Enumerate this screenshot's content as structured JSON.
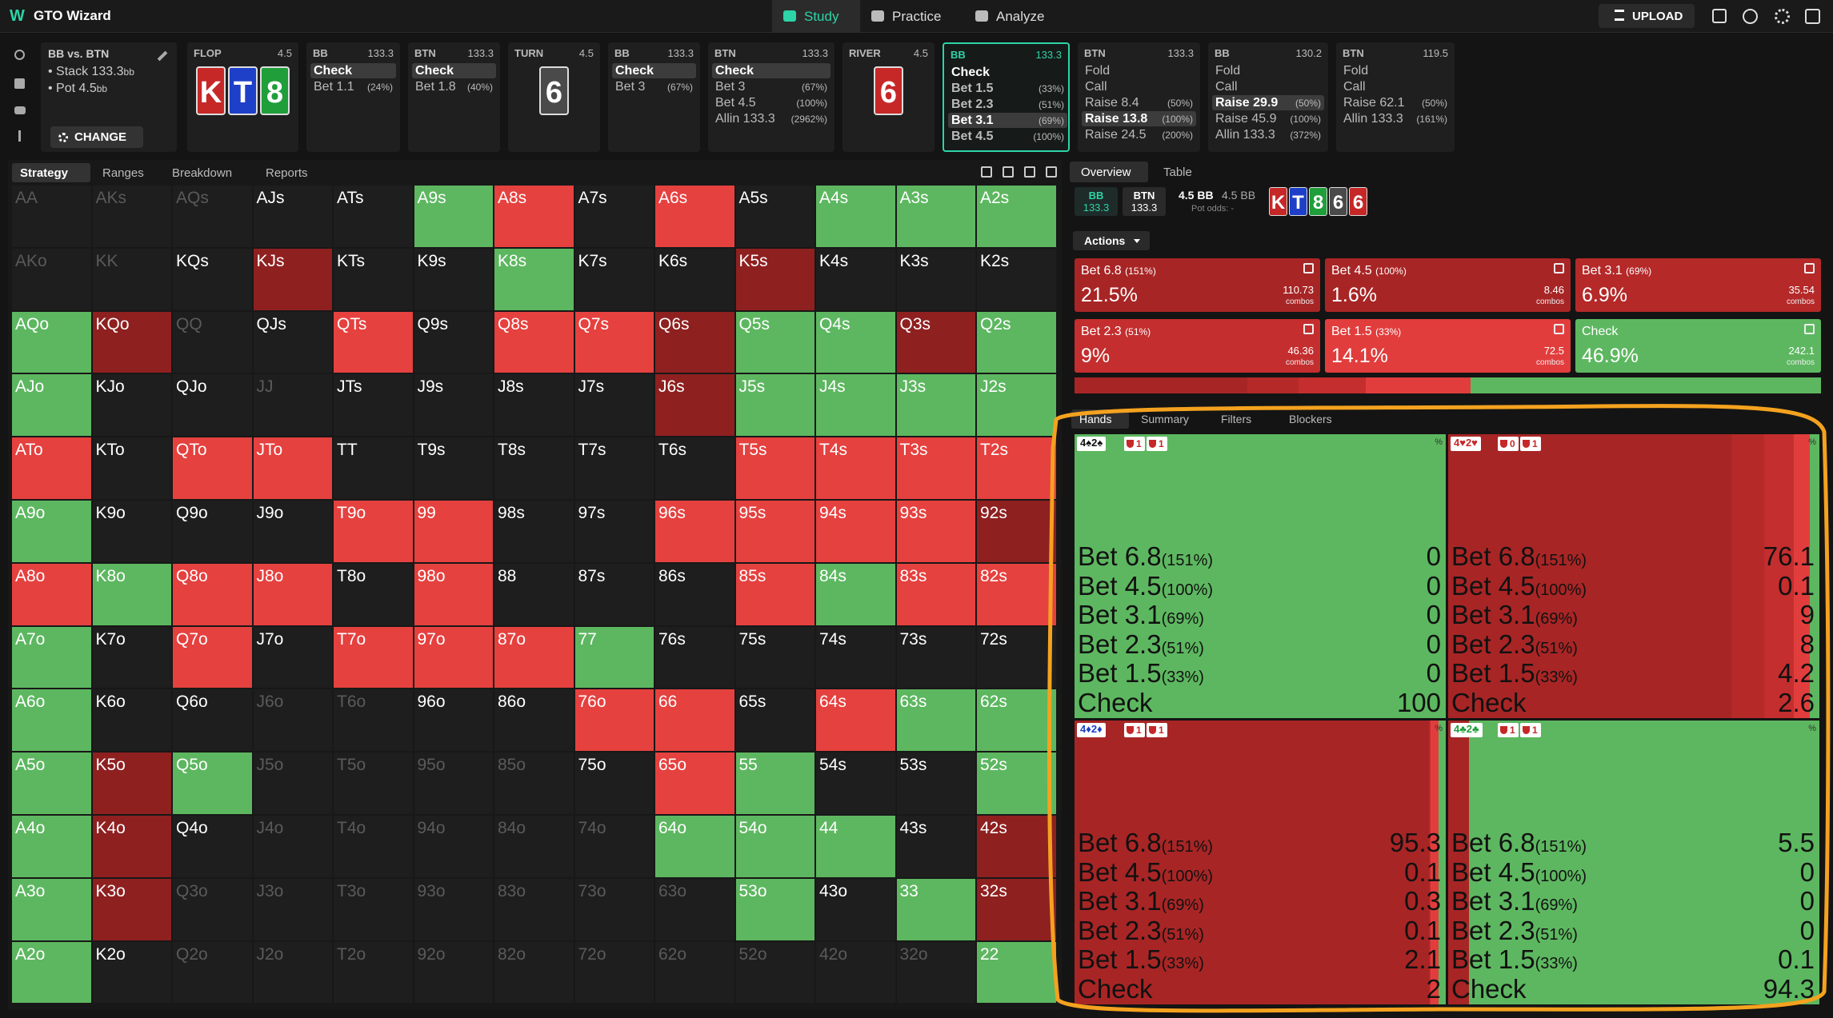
{
  "topbar": {
    "brand": "GTO Wizard",
    "nav": [
      "Study",
      "Practice",
      "Analyze"
    ],
    "active_nav": "Study",
    "upload": "UPLOAD"
  },
  "spot": {
    "matchup": "BB vs. BTN",
    "stack": "Stack 133.3",
    "stack_unit": "bb",
    "pot": "Pot 4.5",
    "pot_unit": "bb",
    "change": "CHANGE"
  },
  "action_columns": [
    {
      "label": "FLOP",
      "value": "4.5",
      "cards": [
        {
          "rank": "K",
          "color": "#c62828"
        },
        {
          "rank": "T",
          "color": "#1e40c8"
        },
        {
          "rank": "8",
          "color": "#1f9e3a"
        }
      ]
    },
    {
      "label": "BB",
      "value": "133.3",
      "actions": [
        {
          "name": "Check",
          "selected": true
        },
        {
          "name": "Bet 1.1",
          "size": "(24%)"
        }
      ]
    },
    {
      "label": "BTN",
      "value": "133.3",
      "actions": [
        {
          "name": "Check",
          "selected": true
        },
        {
          "name": "Bet 1.8",
          "size": "(40%)"
        }
      ]
    },
    {
      "label": "TURN",
      "value": "4.5",
      "cards": [
        {
          "rank": "6",
          "color": "#4a4a4a"
        }
      ]
    },
    {
      "label": "BB",
      "value": "133.3",
      "actions": [
        {
          "name": "Check",
          "selected": true
        },
        {
          "name": "Bet 3",
          "size": "(67%)"
        }
      ]
    },
    {
      "label": "BTN",
      "value": "133.3",
      "actions": [
        {
          "name": "Check",
          "selected": true
        },
        {
          "name": "Bet 3",
          "size": "(67%)"
        },
        {
          "name": "Bet 4.5",
          "size": "(100%)"
        },
        {
          "name": "Allin 133.3",
          "size": "(2962%)"
        }
      ]
    },
    {
      "label": "RIVER",
      "value": "4.5",
      "cards": [
        {
          "rank": "6",
          "color": "#c62828"
        }
      ]
    },
    {
      "label": "BB",
      "value": "133.3",
      "active": true,
      "actions": [
        {
          "name": "Check"
        },
        {
          "name": "Bet 1.5",
          "size": "(33%)"
        },
        {
          "name": "Bet 2.3",
          "size": "(51%)"
        },
        {
          "name": "Bet 3.1",
          "size": "(69%)",
          "selected": true
        },
        {
          "name": "Bet 4.5",
          "size": "(100%)"
        }
      ]
    },
    {
      "label": "BTN",
      "value": "133.3",
      "actions": [
        {
          "name": "Fold"
        },
        {
          "name": "Call"
        },
        {
          "name": "Raise 8.4",
          "size": "(50%)"
        },
        {
          "name": "Raise 13.8",
          "size": "(100%)",
          "selected": true
        },
        {
          "name": "Raise 24.5",
          "size": "(200%)"
        }
      ]
    },
    {
      "label": "BB",
      "value": "130.2",
      "actions": [
        {
          "name": "Fold"
        },
        {
          "name": "Call"
        },
        {
          "name": "Raise 29.9",
          "size": "(50%)",
          "selected": true
        },
        {
          "name": "Raise 45.9",
          "size": "(100%)"
        },
        {
          "name": "Allin 133.3",
          "size": "(372%)"
        }
      ]
    },
    {
      "label": "BTN",
      "value": "119.5",
      "actions": [
        {
          "name": "Fold"
        },
        {
          "name": "Call"
        },
        {
          "name": "Raise 62.1",
          "size": "(50%)"
        },
        {
          "name": "Allin 133.3",
          "size": "(161%)"
        }
      ]
    }
  ],
  "left_tabs": [
    "Strategy",
    "Ranges",
    "Breakdown",
    "Reports"
  ],
  "left_active_tab": "Strategy",
  "hand_grid": {
    "labels": [
      [
        "AA",
        "AKs",
        "AQs",
        "AJs",
        "ATs",
        "A9s",
        "A8s",
        "A7s",
        "A6s",
        "A5s",
        "A4s",
        "A3s",
        "A2s"
      ],
      [
        "AKo",
        "KK",
        "KQs",
        "KJs",
        "KTs",
        "K9s",
        "K8s",
        "K7s",
        "K6s",
        "K5s",
        "K4s",
        "K3s",
        "K2s"
      ],
      [
        "AQo",
        "KQo",
        "QQ",
        "QJs",
        "QTs",
        "Q9s",
        "Q8s",
        "Q7s",
        "Q6s",
        "Q5s",
        "Q4s",
        "Q3s",
        "Q2s"
      ],
      [
        "AJo",
        "KJo",
        "QJo",
        "JJ",
        "JTs",
        "J9s",
        "J8s",
        "J7s",
        "J6s",
        "J5s",
        "J4s",
        "J3s",
        "J2s"
      ],
      [
        "ATo",
        "KTo",
        "QTo",
        "JTo",
        "TT",
        "T9s",
        "T8s",
        "T7s",
        "T6s",
        "T5s",
        "T4s",
        "T3s",
        "T2s"
      ],
      [
        "A9o",
        "K9o",
        "Q9o",
        "J9o",
        "T9o",
        "99",
        "98s",
        "97s",
        "96s",
        "95s",
        "94s",
        "93s",
        "92s"
      ],
      [
        "A8o",
        "K8o",
        "Q8o",
        "J8o",
        "T8o",
        "98o",
        "88",
        "87s",
        "86s",
        "85s",
        "84s",
        "83s",
        "82s"
      ],
      [
        "A7o",
        "K7o",
        "Q7o",
        "J7o",
        "T7o",
        "97o",
        "87o",
        "77",
        "76s",
        "75s",
        "74s",
        "73s",
        "72s"
      ],
      [
        "A6o",
        "K6o",
        "Q6o",
        "J6o",
        "T6o",
        "96o",
        "86o",
        "76o",
        "66",
        "65s",
        "64s",
        "63s",
        "62s"
      ],
      [
        "A5o",
        "K5o",
        "Q5o",
        "J5o",
        "T5o",
        "95o",
        "85o",
        "75o",
        "65o",
        "55",
        "54s",
        "53s",
        "52s"
      ],
      [
        "A4o",
        "K4o",
        "Q4o",
        "J4o",
        "T4o",
        "94o",
        "84o",
        "74o",
        "64o",
        "54o",
        "44",
        "43s",
        "42s"
      ],
      [
        "A3o",
        "K3o",
        "Q3o",
        "J3o",
        "T3o",
        "93o",
        "83o",
        "73o",
        "63o",
        "53o",
        "43o",
        "33",
        "32s"
      ],
      [
        "A2o",
        "K2o",
        "Q2o",
        "J2o",
        "T2o",
        "92o",
        "82o",
        "72o",
        "62o",
        "52o",
        "42o",
        "32o",
        "22"
      ]
    ],
    "colors": [
      [
        "#1e1e1e",
        "#1e1e1e",
        "#1e1e1e",
        "#1e1e1e",
        "#1e1e1e",
        "#5db760",
        "#e5413f",
        "#1e1e1e",
        "#e5413f",
        "#1e1e1e",
        "#5db760",
        "#5db760",
        "#5db760"
      ],
      [
        "#1e1e1e",
        "#1e1e1e",
        "#1e1e1e",
        "#8f2020",
        "#1e1e1e",
        "#1e1e1e",
        "#5db760",
        "#1e1e1e",
        "#1e1e1e",
        "#8f2020",
        "#1e1e1e",
        "#1e1e1e",
        "#1e1e1e"
      ],
      [
        "#5db760",
        "#8f2020",
        "#1e1e1e",
        "#1e1e1e",
        "#e5413f",
        "#1e1e1e",
        "#e5413f",
        "#e5413f",
        "#8f2020",
        "#5db760",
        "#5db760",
        "#8f2020",
        "#5db760"
      ],
      [
        "#5db760",
        "#1e1e1e",
        "#1e1e1e",
        "#1e1e1e",
        "#1e1e1e",
        "#1e1e1e",
        "#1e1e1e",
        "#1e1e1e",
        "#8f2020",
        "#5db760",
        "#5db760",
        "#5db760",
        "#5db760"
      ],
      [
        "#e5413f",
        "#1e1e1e",
        "#e5413f",
        "#e5413f",
        "#1e1e1e",
        "#1e1e1e",
        "#1e1e1e",
        "#1e1e1e",
        "#1e1e1e",
        "#e5413f",
        "#e5413f",
        "#e5413f",
        "#e5413f"
      ],
      [
        "#5db760",
        "#1e1e1e",
        "#1e1e1e",
        "#1e1e1e",
        "#e5413f",
        "#e5413f",
        "#1e1e1e",
        "#1e1e1e",
        "#e5413f",
        "#e5413f",
        "#e5413f",
        "#e5413f",
        "#8f2020"
      ],
      [
        "#e5413f",
        "#5db760",
        "#e5413f",
        "#e5413f",
        "#1e1e1e",
        "#e5413f",
        "#1e1e1e",
        "#1e1e1e",
        "#1e1e1e",
        "#e5413f",
        "#5db760",
        "#e5413f",
        "#e5413f"
      ],
      [
        "#5db760",
        "#1e1e1e",
        "#e5413f",
        "#1e1e1e",
        "#e5413f",
        "#e5413f",
        "#e5413f",
        "#5db760",
        "#1e1e1e",
        "#1e1e1e",
        "#1e1e1e",
        "#1e1e1e",
        "#1e1e1e"
      ],
      [
        "#5db760",
        "#1e1e1e",
        "#1e1e1e",
        "#1e1e1e",
        "#1e1e1e",
        "#1e1e1e",
        "#1e1e1e",
        "#e5413f",
        "#e5413f",
        "#1e1e1e",
        "#e5413f",
        "#5db760",
        "#5db760"
      ],
      [
        "#5db760",
        "#8f2020",
        "#5db760",
        "#1e1e1e",
        "#1e1e1e",
        "#1e1e1e",
        "#1e1e1e",
        "#1e1e1e",
        "#e5413f",
        "#5db760",
        "#1e1e1e",
        "#1e1e1e",
        "#5db760"
      ],
      [
        "#5db760",
        "#8f2020",
        "#1e1e1e",
        "#1e1e1e",
        "#1e1e1e",
        "#1e1e1e",
        "#1e1e1e",
        "#1e1e1e",
        "#5db760",
        "#5db760",
        "#5db760",
        "#1e1e1e",
        "#8f2020"
      ],
      [
        "#5db760",
        "#8f2020",
        "#1e1e1e",
        "#1e1e1e",
        "#1e1e1e",
        "#1e1e1e",
        "#1e1e1e",
        "#1e1e1e",
        "#1e1e1e",
        "#5db760",
        "#1e1e1e",
        "#5db760",
        "#8f2020"
      ],
      [
        "#5db760",
        "#1e1e1e",
        "#1e1e1e",
        "#1e1e1e",
        "#1e1e1e",
        "#1e1e1e",
        "#1e1e1e",
        "#1e1e1e",
        "#1e1e1e",
        "#1e1e1e",
        "#1e1e1e",
        "#1e1e1e",
        "#5db760"
      ]
    ],
    "muted_hands": [
      "AA",
      "AKs",
      "AQs",
      "AKo",
      "KK",
      "QQ",
      "JJ",
      "J6o",
      "T6o",
      "J5o",
      "T5o",
      "95o",
      "85o",
      "J4o",
      "T4o",
      "94o",
      "84o",
      "74o",
      "Q3o",
      "J3o",
      "T3o",
      "93o",
      "83o",
      "73o",
      "63o",
      "Q2o",
      "J2o",
      "T2o",
      "92o",
      "82o",
      "72o",
      "62o",
      "52o",
      "42o",
      "32o"
    ]
  },
  "right_tabs": [
    "Overview",
    "Table"
  ],
  "right_active_tab": "Overview",
  "overview": {
    "players": [
      {
        "name": "BB",
        "stack": "133.3"
      },
      {
        "name": "BTN",
        "stack": "133.3"
      }
    ],
    "pot": "4.5 BB",
    "pot_alt": "4.5 BB",
    "pot_odds": "Pot odds: -",
    "board": [
      {
        "rank": "K",
        "color": "#c62828"
      },
      {
        "rank": "T",
        "color": "#1e40c8"
      },
      {
        "rank": "8",
        "color": "#1f9e3a"
      },
      {
        "rank": "6",
        "color": "#4a4a4a"
      },
      {
        "rank": "6",
        "color": "#c62828"
      }
    ]
  },
  "actions": {
    "title": "Actions",
    "items": [
      {
        "name": "Bet 6.8",
        "size": "(151%)",
        "frequency": 21.5,
        "frequency_label": "21.5%",
        "combos": 110.73,
        "combos_unit": "combos",
        "color": "#a82525"
      },
      {
        "name": "Bet 4.5",
        "size": "(100%)",
        "frequency": 1.6,
        "frequency_label": "1.6%",
        "combos": 8.46,
        "combos_unit": "combos",
        "color": "#a82525"
      },
      {
        "name": "Bet 3.1",
        "size": "(69%)",
        "frequency": 6.9,
        "frequency_label": "6.9%",
        "combos": 35.54,
        "combos_unit": "combos",
        "color": "#b52929"
      },
      {
        "name": "Bet 2.3",
        "size": "(51%)",
        "frequency": 9,
        "frequency_label": "9%",
        "combos": 46.36,
        "combos_unit": "combos",
        "color": "#c42e2e"
      },
      {
        "name": "Bet 1.5",
        "size": "(33%)",
        "frequency": 14.1,
        "frequency_label": "14.1%",
        "combos": 72.5,
        "combos_unit": "combos",
        "color": "#e23d3d"
      },
      {
        "name": "Check",
        "frequency": 46.9,
        "frequency_label": "46.9%",
        "combos": 242.1,
        "combos_unit": "combos",
        "color": "#5db760"
      }
    ]
  },
  "hands_tabs": [
    "Hands",
    "Summary",
    "Filters",
    "Blockers"
  ],
  "hands_active_tab": "Hands",
  "hands": [
    {
      "combo": "4♠2♠",
      "combo_color": "#111111",
      "blockers": [
        1,
        1
      ],
      "unit": "%",
      "rows": [
        {
          "action": "Bet 6.8",
          "size": "(151%)",
          "value": 0
        },
        {
          "action": "Bet 4.5",
          "size": "(100%)",
          "value": 0
        },
        {
          "action": "Bet 3.1",
          "size": "(69%)",
          "value": 0
        },
        {
          "action": "Bet 2.3",
          "size": "(51%)",
          "value": 0
        },
        {
          "action": "Bet 1.5",
          "size": "(33%)",
          "value": 0
        },
        {
          "action": "Check",
          "value": 100
        }
      ]
    },
    {
      "combo": "4♥2♥",
      "combo_color": "#c62828",
      "blockers": [
        0,
        1
      ],
      "unit": "%",
      "rows": [
        {
          "action": "Bet 6.8",
          "size": "(151%)",
          "value": 76.1
        },
        {
          "action": "Bet 4.5",
          "size": "(100%)",
          "value": 0.1
        },
        {
          "action": "Bet 3.1",
          "size": "(69%)",
          "value": 9
        },
        {
          "action": "Bet 2.3",
          "size": "(51%)",
          "value": 8
        },
        {
          "action": "Bet 1.5",
          "size": "(33%)",
          "value": 4.2
        },
        {
          "action": "Check",
          "value": 2.6
        }
      ]
    },
    {
      "combo": "4♦2♦",
      "combo_color": "#1e40c8",
      "blockers": [
        1,
        1
      ],
      "unit": "%",
      "rows": [
        {
          "action": "Bet 6.8",
          "size": "(151%)",
          "value": 95.3
        },
        {
          "action": "Bet 4.5",
          "size": "(100%)",
          "value": 0.1
        },
        {
          "action": "Bet 3.1",
          "size": "(69%)",
          "value": 0.3
        },
        {
          "action": "Bet 2.3",
          "size": "(51%)",
          "value": 0.1
        },
        {
          "action": "Bet 1.5",
          "size": "(33%)",
          "value": 2.1
        },
        {
          "action": "Check",
          "value": 2
        }
      ]
    },
    {
      "combo": "4♣2♣",
      "combo_color": "#1f9e3a",
      "blockers": [
        1,
        1
      ],
      "unit": "%",
      "rows": [
        {
          "action": "Bet 6.8",
          "size": "(151%)",
          "value": 5.5
        },
        {
          "action": "Bet 4.5",
          "size": "(100%)",
          "value": 0
        },
        {
          "action": "Bet 3.1",
          "size": "(69%)",
          "value": 0
        },
        {
          "action": "Bet 2.3",
          "size": "(51%)",
          "value": 0
        },
        {
          "action": "Bet 1.5",
          "size": "(33%)",
          "value": 0.1
        },
        {
          "action": "Check",
          "value": 94.3
        }
      ]
    }
  ]
}
